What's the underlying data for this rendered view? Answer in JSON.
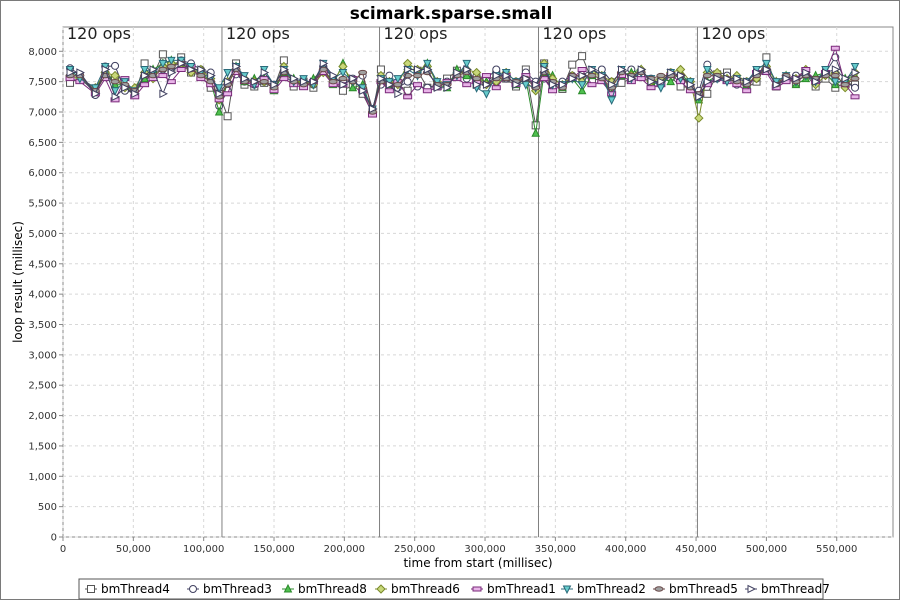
{
  "chart_data": {
    "type": "line",
    "title": "scimark.sparse.small",
    "xlabel": "time from start (millisec)",
    "ylabel": "loop result (millisec)",
    "xlim": [
      0,
      590000
    ],
    "ylim": [
      0,
      8400
    ],
    "x_ticks": [
      0,
      50000,
      100000,
      150000,
      200000,
      250000,
      300000,
      350000,
      400000,
      450000,
      500000,
      550000
    ],
    "x_tick_labels": [
      "0",
      "50,000",
      "100,000",
      "150,000",
      "200,000",
      "250,000",
      "300,000",
      "350,000",
      "400,000",
      "450,000",
      "500,000",
      "550,000"
    ],
    "y_ticks": [
      0,
      500,
      1000,
      1500,
      2000,
      2500,
      3000,
      3500,
      4000,
      4500,
      5000,
      5500,
      6000,
      6500,
      7000,
      7500,
      8000
    ],
    "y_tick_labels": [
      "0",
      "500",
      "1,000",
      "1,500",
      "2,000",
      "2,500",
      "3,000",
      "3,500",
      "4,000",
      "4,500",
      "5,000",
      "5,500",
      "6,000",
      "6,500",
      "7,000",
      "7,500",
      "8,000"
    ],
    "grid": true,
    "legend_position": "bottom",
    "markers": [
      {
        "x": 0,
        "label": "120 ops"
      },
      {
        "x": 113000,
        "label": "120 ops"
      },
      {
        "x": 225000,
        "label": "120 ops"
      },
      {
        "x": 338000,
        "label": "120 ops"
      },
      {
        "x": 451000,
        "label": "120 ops"
      }
    ],
    "x": [
      5000,
      12000,
      23000,
      30000,
      37000,
      44000,
      51000,
      58000,
      64000,
      71000,
      77000,
      84000,
      91000,
      98000,
      105000,
      111000,
      117000,
      123000,
      129000,
      136000,
      143000,
      150000,
      157000,
      164000,
      171000,
      178000,
      185000,
      192000,
      199000,
      206000,
      213000,
      220000,
      226000,
      232000,
      238000,
      245000,
      252000,
      259000,
      266000,
      273000,
      280000,
      287000,
      294000,
      301000,
      308000,
      315000,
      322000,
      329000,
      336000,
      342000,
      348000,
      355000,
      362000,
      369000,
      376000,
      383000,
      390000,
      397000,
      404000,
      411000,
      418000,
      425000,
      432000,
      439000,
      446000,
      452000,
      458000,
      465000,
      472000,
      479000,
      486000,
      493000,
      500000,
      507000,
      514000,
      521000,
      528000,
      535000,
      542000,
      549000,
      556000,
      563000
    ],
    "series": [
      {
        "name": "bmThread4",
        "marker": "square",
        "values": [
          7480,
          7560,
          7320,
          7610,
          7550,
          7390,
          7280,
          7800,
          7600,
          7950,
          7700,
          7900,
          7650,
          7600,
          7400,
          7300,
          6930,
          7800,
          7450,
          7420,
          7480,
          7400,
          7850,
          7420,
          7500,
          7400,
          7700,
          7500,
          7350,
          7450,
          7300,
          6980,
          7700,
          7400,
          7450,
          7350,
          7680,
          7400,
          7420,
          7550,
          7680,
          7650,
          7450,
          7500,
          7620,
          7550,
          7420,
          7700,
          6780,
          7800,
          7450,
          7380,
          7780,
          7920,
          7520,
          7550,
          7350,
          7480,
          7550,
          7620,
          7450,
          7500,
          7580,
          7420,
          7400,
          7250,
          7300,
          7620,
          7650,
          7500,
          7400,
          7500,
          7900,
          7420,
          7550,
          7480,
          7620,
          7420,
          7550,
          7400,
          7480,
          7450
        ]
      },
      {
        "name": "bmThread3",
        "marker": "circle",
        "values": [
          7720,
          7620,
          7280,
          7750,
          7760,
          7350,
          7350,
          7500,
          7650,
          7700,
          7750,
          7850,
          7800,
          7700,
          7650,
          7100,
          7350,
          7620,
          7500,
          7450,
          7500,
          7450,
          7600,
          7480,
          7500,
          7450,
          7750,
          7550,
          7500,
          7550,
          7600,
          7050,
          7450,
          7600,
          7400,
          7500,
          7420,
          7400,
          7450,
          7500,
          7600,
          7550,
          7600,
          7550,
          7700,
          7550,
          7500,
          7650,
          7500,
          7550,
          7400,
          7500,
          7600,
          7500,
          7650,
          7700,
          7500,
          7650,
          7700,
          7600,
          7550,
          7450,
          7650,
          7600,
          7400,
          7350,
          7780,
          7550,
          7600,
          7450,
          7500,
          7550,
          7700,
          7450,
          7550,
          7600,
          7650,
          7550,
          7650,
          7900,
          7500,
          7400
        ]
      },
      {
        "name": "bmThread8",
        "marker": "triangle-up",
        "values": [
          7650,
          7600,
          7350,
          7700,
          7450,
          7450,
          7300,
          7550,
          7700,
          7800,
          7850,
          7750,
          7700,
          7650,
          7500,
          7000,
          7500,
          7750,
          7500,
          7550,
          7550,
          7350,
          7650,
          7550,
          7450,
          7550,
          7700,
          7450,
          7800,
          7400,
          7450,
          7000,
          7550,
          7450,
          7500,
          7750,
          7650,
          7800,
          7450,
          7400,
          7700,
          7600,
          7550,
          7500,
          7450,
          7600,
          7450,
          7550,
          6650,
          7650,
          7600,
          7400,
          7550,
          7350,
          7600,
          7550,
          7300,
          7600,
          7650,
          7700,
          7500,
          7550,
          7500,
          7650,
          7450,
          7200,
          7500,
          7600,
          7550,
          7500,
          7450,
          7600,
          7750,
          7500,
          7600,
          7450,
          7550,
          7600,
          7650,
          7450,
          7550,
          7600
        ]
      },
      {
        "name": "bmThread6",
        "marker": "diamond",
        "values": [
          7600,
          7550,
          7400,
          7650,
          7600,
          7400,
          7400,
          7650,
          7550,
          7750,
          7800,
          7800,
          7650,
          7700,
          7550,
          7200,
          7500,
          7700,
          7550,
          7500,
          7500,
          7400,
          7750,
          7500,
          7500,
          7450,
          7650,
          7500,
          7750,
          7500,
          7400,
          7000,
          7600,
          7500,
          7450,
          7800,
          7700,
          7750,
          7500,
          7450,
          7600,
          7700,
          7650,
          7450,
          7500,
          7650,
          7500,
          7500,
          7350,
          7800,
          7550,
          7450,
          7600,
          7500,
          7650,
          7600,
          7500,
          7650,
          7600,
          7700,
          7500,
          7550,
          7650,
          7700,
          7500,
          6900,
          7650,
          7650,
          7550,
          7600,
          7500,
          7550,
          7750,
          7500,
          7550,
          7550,
          7700,
          7450,
          7600,
          7650,
          7400,
          7650
        ]
      },
      {
        "name": "bmThread1",
        "marker": "rect-wide",
        "values": [
          7550,
          7500,
          7300,
          7550,
          7200,
          7550,
          7250,
          7450,
          7550,
          7600,
          7500,
          7700,
          7750,
          7550,
          7450,
          7200,
          7300,
          7650,
          7500,
          7450,
          7550,
          7350,
          7550,
          7450,
          7400,
          7500,
          7650,
          7450,
          7450,
          7550,
          7350,
          6950,
          7500,
          7350,
          7500,
          7250,
          7450,
          7350,
          7400,
          7500,
          7550,
          7450,
          7500,
          7600,
          7400,
          7600,
          7450,
          7600,
          7450,
          7550,
          7350,
          7450,
          7550,
          7700,
          7450,
          7500,
          7300,
          7600,
          7500,
          7550,
          7400,
          7450,
          7600,
          7500,
          7350,
          7300,
          7450,
          7550,
          7500,
          7450,
          7350,
          7650,
          7650,
          7400,
          7500,
          7550,
          7700,
          7500,
          7650,
          8050,
          7450,
          7250
        ]
      },
      {
        "name": "bmThread2",
        "marker": "triangle-down",
        "values": [
          7700,
          7550,
          7400,
          7750,
          7350,
          7500,
          7350,
          7700,
          7650,
          7800,
          7850,
          7850,
          7750,
          7650,
          7550,
          7400,
          7650,
          7750,
          7600,
          7450,
          7700,
          7450,
          7700,
          7500,
          7550,
          7450,
          7800,
          7550,
          7650,
          7500,
          7400,
          7050,
          7550,
          7500,
          7550,
          7700,
          7600,
          7800,
          7500,
          7450,
          7600,
          7800,
          7400,
          7300,
          7600,
          7650,
          7500,
          7450,
          7400,
          7750,
          7450,
          7450,
          7550,
          7450,
          7700,
          7600,
          7200,
          7700,
          7550,
          7650,
          7550,
          7400,
          7650,
          7550,
          7500,
          7250,
          7700,
          7550,
          7500,
          7550,
          7500,
          7700,
          7800,
          7500,
          7600,
          7500,
          7600,
          7500,
          7700,
          7500,
          7500,
          7750
        ]
      },
      {
        "name": "bmThread5",
        "marker": "ellipse",
        "values": [
          7600,
          7600,
          7350,
          7600,
          7500,
          7450,
          7350,
          7600,
          7600,
          7700,
          7750,
          7800,
          7700,
          7600,
          7500,
          7250,
          7450,
          7700,
          7500,
          7500,
          7500,
          7400,
          7650,
          7500,
          7450,
          7500,
          7700,
          7500,
          7550,
          7500,
          7650,
          7000,
          7500,
          7450,
          7450,
          7600,
          7600,
          7650,
          7450,
          7450,
          7600,
          7650,
          7550,
          7450,
          7550,
          7550,
          7500,
          7550,
          7400,
          7650,
          7500,
          7400,
          7600,
          7600,
          7600,
          7550,
          7400,
          7650,
          7600,
          7650,
          7550,
          7600,
          7600,
          7600,
          7400,
          7300,
          7600,
          7600,
          7550,
          7500,
          7450,
          7600,
          7700,
          7450,
          7600,
          7500,
          7600,
          7550,
          7600,
          7600,
          7450,
          7550
        ]
      },
      {
        "name": "bmThread7",
        "marker": "triangle-right",
        "values": [
          7650,
          7650,
          7300,
          7700,
          7250,
          7400,
          7300,
          7600,
          7700,
          7300,
          7650,
          7800,
          7700,
          7700,
          7600,
          7300,
          7500,
          7750,
          7550,
          7500,
          7650,
          7450,
          7700,
          7550,
          7500,
          7500,
          7800,
          7600,
          7450,
          7550,
          7350,
          7050,
          7550,
          7450,
          7300,
          7700,
          7700,
          7700,
          7400,
          7400,
          7650,
          7700,
          7450,
          7450,
          7600,
          7600,
          7450,
          7550,
          7450,
          7700,
          7450,
          7450,
          7550,
          7600,
          7700,
          7600,
          7450,
          7700,
          7550,
          7700,
          7500,
          7500,
          7650,
          7600,
          7450,
          7250,
          7500,
          7550,
          7550,
          7550,
          7500,
          7650,
          7700,
          7450,
          7550,
          7550,
          7650,
          7500,
          7650,
          7700,
          7550,
          7650
        ]
      }
    ],
    "colors": [
      "#ffffff",
      "#ffffff",
      "#4fc04f",
      "#c8d87a",
      "#e8b4e8",
      "#66cccc",
      "#a0a0a0",
      "#ffffff"
    ],
    "line_colors": [
      "#555555",
      "#404060",
      "#2a8a2a",
      "#7a8a2a",
      "#7a2a7a",
      "#2a6a7a",
      "#6a4a4a",
      "#404060"
    ]
  }
}
